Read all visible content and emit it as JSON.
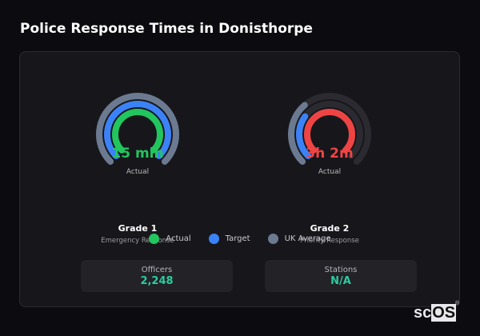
{
  "header": {
    "title": "Police Response Times in Donisthorpe"
  },
  "gauges": [
    {
      "value": "15 min",
      "value_color": "#22c55e",
      "sublabel": "Actual",
      "name": "Grade 1",
      "description": "Emergency Response",
      "arcs": {
        "uk_average": 1.0,
        "target": 1.0,
        "actual": 1.0
      },
      "actual_color": "#22c55e"
    },
    {
      "value": "3h 2m",
      "value_color": "#ef4444",
      "sublabel": "Actual",
      "name": "Grade 2",
      "description": "Priority Response",
      "arcs": {
        "uk_average": 0.35,
        "target": 0.3,
        "actual": 1.0
      },
      "actual_color": "#ef4444"
    }
  ],
  "legend": [
    {
      "label": "Actual",
      "color": "#22c55e"
    },
    {
      "label": "Target",
      "color": "#3b82f6"
    },
    {
      "label": "UK Average",
      "color": "#6b7a90"
    }
  ],
  "stats": [
    {
      "label": "Officers",
      "value": "2,248"
    },
    {
      "label": "Stations",
      "value": "N/A"
    }
  ],
  "branding": {
    "logo_sc": "sc",
    "logo_os": "OS",
    "logo_mark": "®"
  },
  "colors": {
    "target": "#3b82f6",
    "uk_average": "#6b7a90",
    "track": "#2a2a30",
    "stat_value": "#2ccba0"
  }
}
